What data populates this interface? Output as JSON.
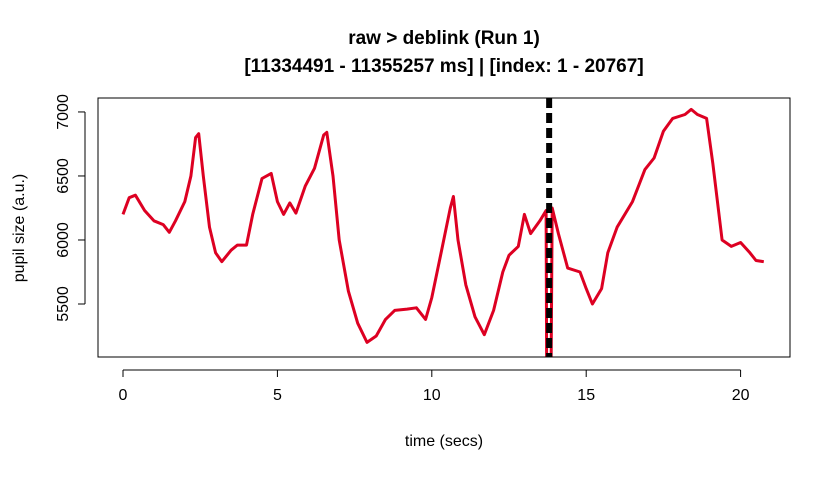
{
  "chart_data": {
    "type": "line",
    "title": "raw > deblink (Run 1)",
    "subtitle": "[11334491 - 11355257 ms] | [index: 1 - 20767]",
    "xlabel": "time (secs)",
    "ylabel": "pupil size (a.u.)",
    "xlim": [
      -0.81,
      21.6
    ],
    "ylim": [
      5086,
      7109
    ],
    "xticks": [
      0,
      5,
      10,
      15,
      20
    ],
    "yticks": [
      5500,
      6000,
      6500,
      7000
    ],
    "grid": false,
    "colors": {
      "series": "#dd0022",
      "marker": "#000000"
    },
    "vline": {
      "x": 13.8,
      "style": "dashed"
    },
    "series": [
      {
        "x": [
          0,
          0.2,
          0.4,
          0.7,
          1.0,
          1.3,
          1.5,
          1.7,
          2.0,
          2.2,
          2.35,
          2.45,
          2.6,
          2.8,
          3.0,
          3.2,
          3.5,
          3.7,
          4.0,
          4.2,
          4.5,
          4.8,
          5.0,
          5.2,
          5.4,
          5.6,
          5.9,
          6.2,
          6.5,
          6.6,
          6.8,
          7.0,
          7.3,
          7.6,
          7.9,
          8.2,
          8.5,
          8.8,
          9.2,
          9.5,
          9.8,
          10.0,
          10.3,
          10.6,
          10.7,
          10.85,
          11.1,
          11.4,
          11.7,
          12.0,
          12.3,
          12.5,
          12.8,
          13.0,
          13.2,
          13.5,
          13.7,
          13.72,
          13.86,
          13.9,
          14.1,
          14.4,
          14.8,
          15.0,
          15.2,
          15.5,
          15.7,
          16.0,
          16.5,
          16.9,
          17.2,
          17.5,
          17.8,
          18.2,
          18.4,
          18.6,
          18.9,
          19.1,
          19.4,
          19.7,
          20.0,
          20.3,
          20.5,
          20.75
        ],
        "y": [
          6200,
          6330,
          6350,
          6230,
          6150,
          6120,
          6060,
          6150,
          6300,
          6500,
          6800,
          6830,
          6500,
          6100,
          5900,
          5830,
          5920,
          5960,
          5960,
          6200,
          6480,
          6520,
          6300,
          6200,
          6290,
          6210,
          6420,
          6560,
          6820,
          6840,
          6500,
          6000,
          5600,
          5350,
          5200,
          5250,
          5380,
          5450,
          5460,
          5470,
          5380,
          5550,
          5900,
          6250,
          6340,
          6000,
          5650,
          5400,
          5260,
          5450,
          5750,
          5880,
          5950,
          6200,
          6050,
          6150,
          6230,
          4900,
          4900,
          6250,
          6050,
          5780,
          5750,
          5620,
          5500,
          5620,
          5900,
          6100,
          6300,
          6550,
          6640,
          6850,
          6950,
          6980,
          7020,
          6980,
          6950,
          6600,
          6000,
          5950,
          5980,
          5900,
          5840,
          5830
        ]
      }
    ]
  }
}
